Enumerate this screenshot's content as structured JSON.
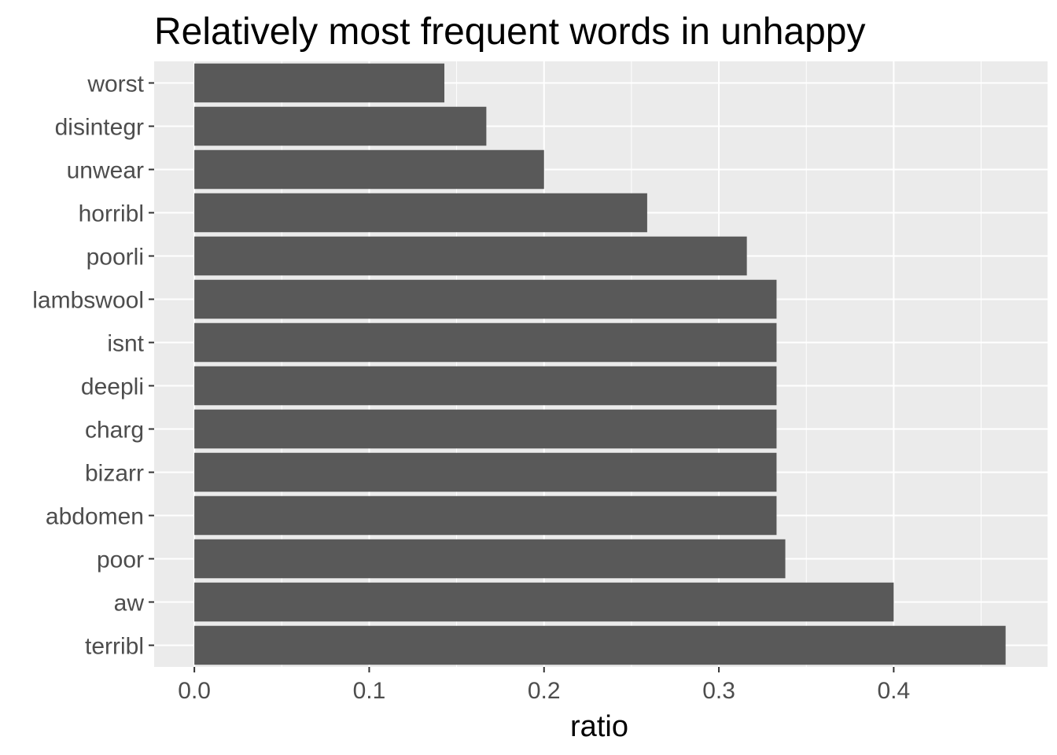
{
  "chart_data": {
    "type": "bar",
    "orientation": "horizontal",
    "title": "Relatively most frequent words in unhappy",
    "xlabel": "ratio",
    "ylabel": "",
    "xlim": [
      -0.023,
      0.488
    ],
    "xticks": [
      0.0,
      0.1,
      0.2,
      0.3,
      0.4
    ],
    "xtick_labels": [
      "0.0",
      "0.1",
      "0.2",
      "0.3",
      "0.4"
    ],
    "grid": true,
    "colors": {
      "panel": "#ebebeb",
      "bar": "#595959",
      "grid": "#ffffff",
      "tick_text": "#4d4d4d"
    },
    "categories": [
      "worst",
      "disintegr",
      "unwear",
      "horribl",
      "poorli",
      "lambswool",
      "isnt",
      "deepli",
      "charg",
      "bizarr",
      "abdomen",
      "poor",
      "aw",
      "terribl"
    ],
    "values": [
      0.143,
      0.167,
      0.2,
      0.259,
      0.316,
      0.333,
      0.333,
      0.333,
      0.333,
      0.333,
      0.333,
      0.338,
      0.4,
      0.464
    ]
  }
}
